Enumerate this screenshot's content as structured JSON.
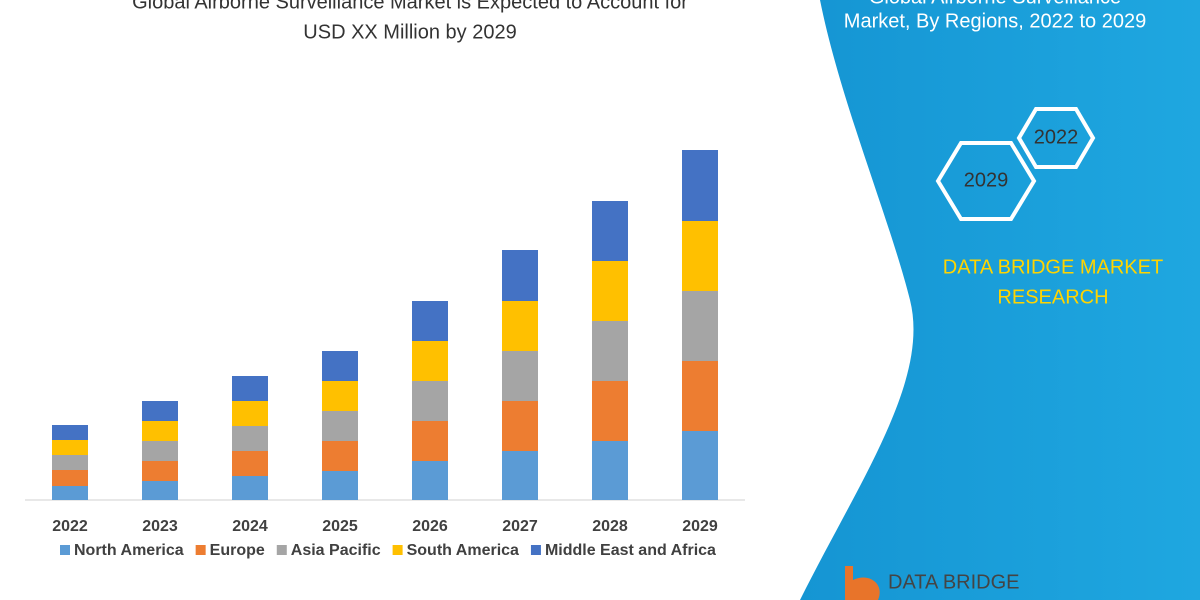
{
  "chart_data": {
    "type": "stacked_bar",
    "title": [
      "Global Airborne Surveillance Market is Expected to Account for",
      "USD XX Million by 2029"
    ],
    "categories": [
      "2022",
      "2023",
      "2024",
      "2025",
      "2026",
      "2027",
      "2028",
      "2029"
    ],
    "series": [
      {
        "name": "North America",
        "color": "#5b9bd5",
        "values": [
          14,
          19,
          24,
          29,
          39,
          49,
          59,
          69
        ]
      },
      {
        "name": "Europe",
        "color": "#ed7d31",
        "values": [
          16,
          20,
          25,
          30,
          40,
          50,
          60,
          70
        ]
      },
      {
        "name": "Asia Pacific",
        "color": "#a5a5a5",
        "values": [
          15,
          20,
          25,
          30,
          40,
          50,
          60,
          70
        ]
      },
      {
        "name": "South America",
        "color": "#ffc000",
        "values": [
          15,
          20,
          25,
          30,
          40,
          50,
          60,
          70
        ]
      },
      {
        "name": "Middle East and Africa",
        "color": "#4472c4",
        "values": [
          15,
          20,
          25,
          30,
          40,
          51,
          60,
          71
        ]
      }
    ],
    "ylim": [
      0,
      360
    ],
    "legend": "bottom"
  },
  "panel": {
    "title": [
      "Global Airborne Surveillance",
      "Market, By Regions, 2022 to 2029"
    ],
    "hexagons": [
      "2022",
      "2029"
    ],
    "brand": [
      "DATA BRIDGE MARKET",
      "RESEARCH"
    ],
    "logo": "DATA BRIDGE"
  }
}
